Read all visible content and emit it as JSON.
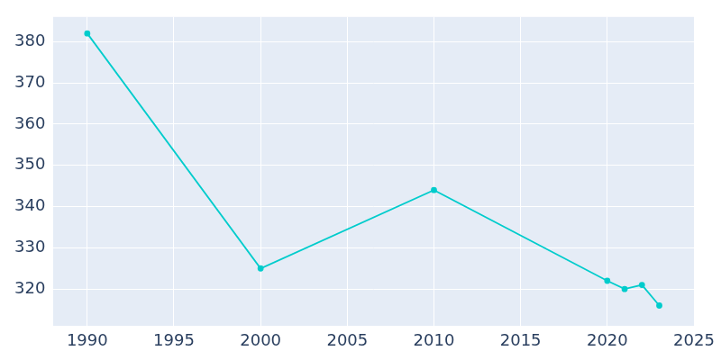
{
  "chart_data": {
    "type": "line",
    "x": [
      1990,
      2000,
      2010,
      2020,
      2021,
      2022,
      2023
    ],
    "values": [
      382,
      325,
      344,
      322,
      320,
      321,
      316
    ],
    "color": "#00cccc",
    "marker": "circle",
    "xlim": [
      1988,
      2025
    ],
    "xticks": [
      1990,
      1995,
      2000,
      2005,
      2010,
      2015,
      2020,
      2025
    ],
    "ylim": [
      311,
      386
    ],
    "yticks": [
      320,
      330,
      340,
      350,
      360,
      370,
      380
    ],
    "grid": true
  }
}
